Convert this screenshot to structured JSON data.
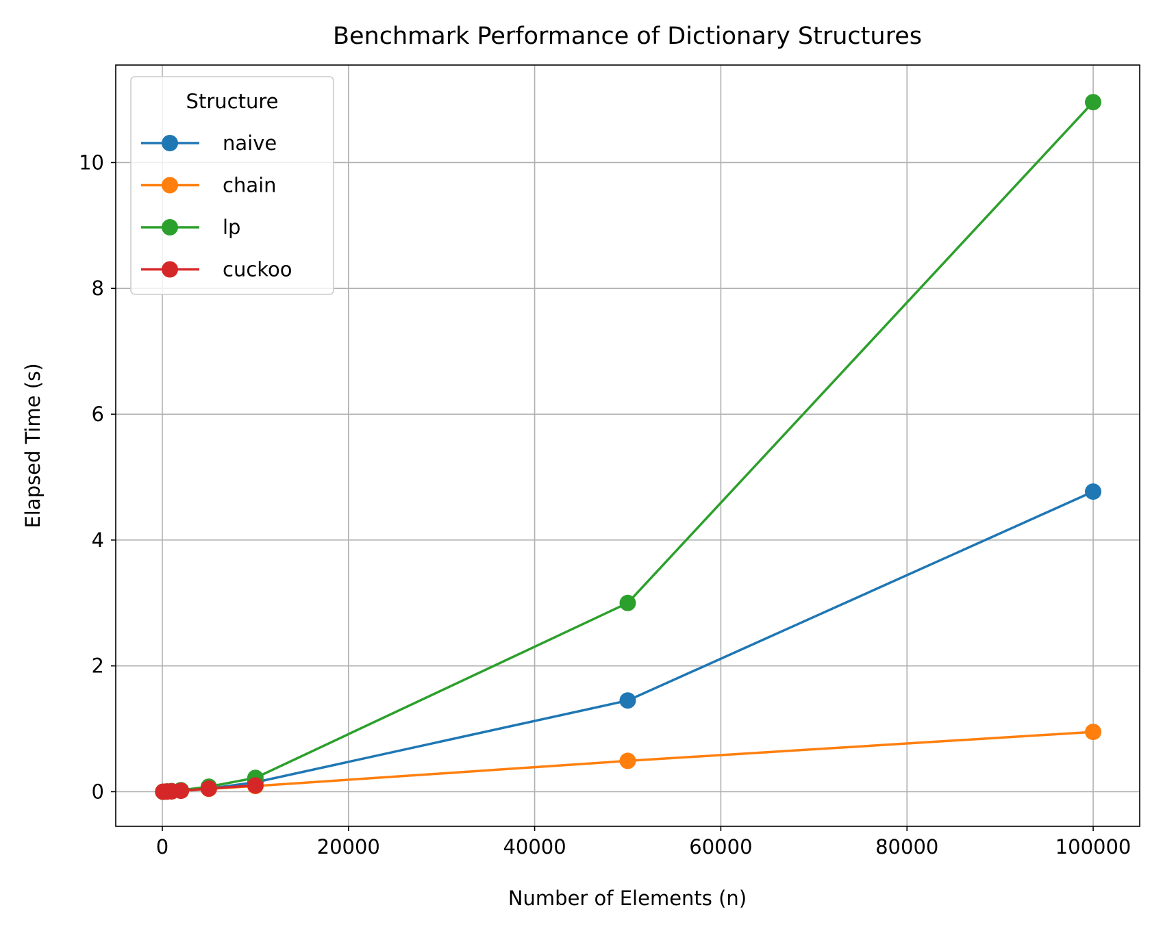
{
  "chart_data": {
    "type": "line",
    "title": "Benchmark Performance of Dictionary Structures",
    "xlabel": "Number of Elements (n)",
    "ylabel": "Elapsed Time (s)",
    "xlim": [
      -5000,
      105000
    ],
    "ylim": [
      -0.55,
      11.55
    ],
    "xticks": [
      0,
      20000,
      40000,
      60000,
      80000,
      100000
    ],
    "xtick_labels": [
      "0",
      "20000",
      "40000",
      "60000",
      "80000",
      "100000"
    ],
    "yticks": [
      0,
      2,
      4,
      6,
      8,
      10
    ],
    "ytick_labels": [
      "0",
      "2",
      "4",
      "6",
      "8",
      "10"
    ],
    "grid": true,
    "legend": {
      "title": "Structure",
      "location": "upper-left"
    },
    "x": [
      100,
      500,
      1000,
      2000,
      5000,
      10000,
      50000,
      100000
    ],
    "series": [
      {
        "name": "naive",
        "color": "#1f77b4",
        "values": [
          0.0,
          0.002,
          0.006,
          0.018,
          0.05,
          0.15,
          1.45,
          4.77
        ]
      },
      {
        "name": "chain",
        "color": "#ff7f0e",
        "values": [
          0.0,
          0.003,
          0.006,
          0.015,
          0.045,
          0.09,
          0.49,
          0.95
        ]
      },
      {
        "name": "lp",
        "color": "#2ca02c",
        "values": [
          0.0,
          0.004,
          0.009,
          0.025,
          0.08,
          0.22,
          3.0,
          10.96
        ]
      },
      {
        "name": "cuckoo",
        "color": "#d62728",
        "values": [
          0.0,
          0.003,
          0.006,
          0.015,
          0.05,
          0.1,
          null,
          null
        ]
      }
    ]
  }
}
